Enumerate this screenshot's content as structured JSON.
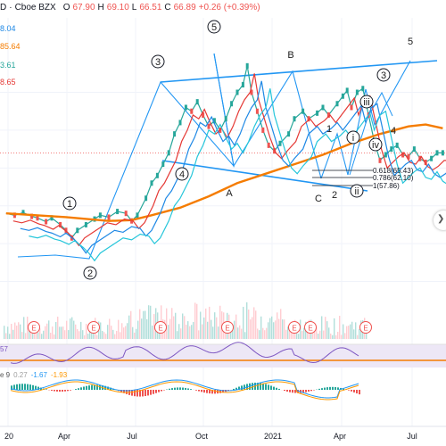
{
  "header": {
    "symbol_fragment": "D",
    "separator": "·",
    "exchange": "Cboe BZX",
    "open_label": "O",
    "open_value": "67.90",
    "high_label": "H",
    "high_value": "69.10",
    "low_label": "L",
    "low_value": "66.51",
    "close_label": "C",
    "close_value": "66.89",
    "change": "+0.26 (+0.39%)"
  },
  "overlay_values": {
    "blue": "8.04",
    "orange": "85.64",
    "teal": "3.61",
    "red": "8.65"
  },
  "indicators": {
    "rsi_edge": "57",
    "macd_label": "e 9",
    "macd_v1": "0.27",
    "macd_v2": "-1.67",
    "macd_v3": "-1.93"
  },
  "colors": {
    "up": "#26a69a",
    "down": "#ef5350",
    "wave_line": "#2196f3",
    "ma_orange": "#f57c00",
    "ma_blue": "#1e88e5",
    "ma_teal": "#26c6da",
    "ma_red": "#e53935",
    "rsi_line": "#7e57c2",
    "rsi_band": "#ede7f6",
    "macd_blue": "#2196f3",
    "macd_orange": "#ff9800",
    "dotted_price": "#ef5350"
  },
  "icons": [
    "earnings-marker-icon",
    "scroll-right-icon"
  ],
  "chart_data": {
    "type": "candlestick",
    "x_ticks": [
      "20",
      "Apr",
      "Jul",
      "Oct",
      "2021",
      "Apr",
      "Jul"
    ],
    "ylim": [
      38,
      100
    ],
    "price": [
      {
        "m": -0.1,
        "v": 58
      },
      {
        "m": 0.2,
        "v": 57.5
      },
      {
        "m": 0.5,
        "v": 58.2
      },
      {
        "m": 0.8,
        "v": 57.2
      },
      {
        "m": 1.0,
        "v": 56.8
      },
      {
        "m": 1.3,
        "v": 55.8
      },
      {
        "m": 1.5,
        "v": 56.8
      },
      {
        "m": 1.8,
        "v": 55
      },
      {
        "m": 2.0,
        "v": 53.5
      },
      {
        "m": 2.2,
        "v": 51.5
      },
      {
        "m": 2.4,
        "v": 53.5
      },
      {
        "m": 2.7,
        "v": 55
      },
      {
        "m": 3.0,
        "v": 56.5
      },
      {
        "m": 3.2,
        "v": 57.5
      },
      {
        "m": 3.5,
        "v": 57
      },
      {
        "m": 3.8,
        "v": 58.5
      },
      {
        "m": 4.1,
        "v": 58
      },
      {
        "m": 4.3,
        "v": 56
      },
      {
        "m": 4.5,
        "v": 57.5
      },
      {
        "m": 4.8,
        "v": 62
      },
      {
        "m": 5.0,
        "v": 66
      },
      {
        "m": 5.2,
        "v": 68
      },
      {
        "m": 5.4,
        "v": 71
      },
      {
        "m": 5.6,
        "v": 74
      },
      {
        "m": 5.8,
        "v": 79
      },
      {
        "m": 6.0,
        "v": 82
      },
      {
        "m": 6.2,
        "v": 86
      },
      {
        "m": 6.4,
        "v": 85
      },
      {
        "m": 6.6,
        "v": 87.5
      },
      {
        "m": 6.8,
        "v": 84
      },
      {
        "m": 7.0,
        "v": 81
      },
      {
        "m": 7.2,
        "v": 82.5
      },
      {
        "m": 7.4,
        "v": 80
      },
      {
        "m": 7.6,
        "v": 83
      },
      {
        "m": 7.8,
        "v": 87
      },
      {
        "m": 8.0,
        "v": 90
      },
      {
        "m": 8.2,
        "v": 92
      },
      {
        "m": 8.35,
        "v": 97
      },
      {
        "m": 8.5,
        "v": 90
      },
      {
        "m": 8.7,
        "v": 85
      },
      {
        "m": 8.9,
        "v": 80
      },
      {
        "m": 9.1,
        "v": 76
      },
      {
        "m": 9.3,
        "v": 74.5
      },
      {
        "m": 9.5,
        "v": 76.5
      },
      {
        "m": 9.8,
        "v": 79
      },
      {
        "m": 10.0,
        "v": 83
      },
      {
        "m": 10.3,
        "v": 85
      },
      {
        "m": 10.5,
        "v": 83
      },
      {
        "m": 10.8,
        "v": 84.5
      },
      {
        "m": 11.0,
        "v": 86
      },
      {
        "m": 11.2,
        "v": 84
      },
      {
        "m": 11.5,
        "v": 87
      },
      {
        "m": 11.7,
        "v": 89
      },
      {
        "m": 11.85,
        "v": 90.5
      },
      {
        "m": 12.0,
        "v": 86
      },
      {
        "m": 12.2,
        "v": 90
      },
      {
        "m": 12.4,
        "v": 91
      },
      {
        "m": 12.6,
        "v": 84
      },
      {
        "m": 12.8,
        "v": 77
      },
      {
        "m": 13.0,
        "v": 72
      },
      {
        "m": 13.2,
        "v": 73.5
      },
      {
        "m": 13.4,
        "v": 75
      },
      {
        "m": 13.6,
        "v": 76
      },
      {
        "m": 13.8,
        "v": 73.5
      },
      {
        "m": 14.0,
        "v": 73
      },
      {
        "m": 14.2,
        "v": 75
      },
      {
        "m": 14.4,
        "v": 72.5
      },
      {
        "m": 14.6,
        "v": 71.5
      },
      {
        "m": 14.8,
        "v": 72.5
      },
      {
        "m": 15.0,
        "v": 74
      },
      {
        "m": 15.2,
        "v": 74
      }
    ],
    "ma_orange": [
      {
        "m": -0.1,
        "v": 58
      },
      {
        "m": 2.0,
        "v": 57
      },
      {
        "m": 3.5,
        "v": 56
      },
      {
        "m": 4.3,
        "v": 56.2
      },
      {
        "m": 5.0,
        "v": 57.5
      },
      {
        "m": 6.0,
        "v": 59.5
      },
      {
        "m": 7.0,
        "v": 62.5
      },
      {
        "m": 8.0,
        "v": 66
      },
      {
        "m": 9.0,
        "v": 68.5
      },
      {
        "m": 10.0,
        "v": 71
      },
      {
        "m": 11.0,
        "v": 73.5
      },
      {
        "m": 12.0,
        "v": 76.5
      },
      {
        "m": 13.0,
        "v": 79
      },
      {
        "m": 14.0,
        "v": 81
      },
      {
        "m": 14.6,
        "v": 81.5
      },
      {
        "m": 15.2,
        "v": 80.5
      }
    ],
    "earnings_markers": [
      "E",
      "E",
      "E",
      "E",
      "E",
      "E",
      "E",
      "E"
    ],
    "elliott_labels": [
      "1",
      "2",
      "3",
      "4",
      "5",
      "A",
      "B",
      "C",
      "1",
      "2",
      "3",
      "4",
      "5",
      "i",
      "ii",
      "iii",
      "iv"
    ],
    "fib_levels": [
      {
        "ratio": "0.618",
        "price": "65.43"
      },
      {
        "ratio": "0.786",
        "price": "62.10"
      },
      {
        "ratio": "1",
        "price": "57.86"
      }
    ]
  }
}
